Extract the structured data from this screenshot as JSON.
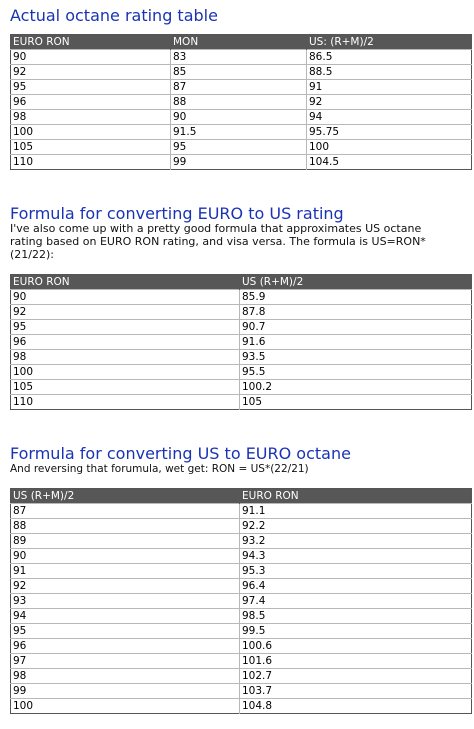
{
  "section1": {
    "title": "Actual octane rating table",
    "headers": [
      "EURO RON",
      "MON",
      "US: (R+M)/2"
    ],
    "rows": [
      [
        "90",
        "83",
        "86.5"
      ],
      [
        "92",
        "85",
        "88.5"
      ],
      [
        "95",
        "87",
        "91"
      ],
      [
        "96",
        "88",
        "92"
      ],
      [
        "98",
        "90",
        "94"
      ],
      [
        "100",
        "91.5",
        "95.75"
      ],
      [
        "105",
        "95",
        "100"
      ],
      [
        "110",
        "99",
        "104.5"
      ]
    ]
  },
  "section2": {
    "title": "Formula for converting EURO to US rating",
    "intro_lines": [
      "I've also come up with a pretty good formula that approximates US octane",
      "rating based on EURO RON rating, and visa versa. The formula is US=RON*",
      "(21/22):"
    ],
    "headers": [
      "EURO RON",
      "US (R+M)/2"
    ],
    "rows": [
      [
        "90",
        "85.9"
      ],
      [
        "92",
        "87.8"
      ],
      [
        "95",
        "90.7"
      ],
      [
        "96",
        "91.6"
      ],
      [
        "98",
        "93.5"
      ],
      [
        "100",
        "95.5"
      ],
      [
        "105",
        "100.2"
      ],
      [
        "110",
        "105"
      ]
    ]
  },
  "section3": {
    "title": "Formula for converting US to EURO octane",
    "intro_lines": [
      "And reversing that forumula, wet get: RON = US*(22/21)"
    ],
    "headers": [
      "US (R+M)/2",
      "EURO RON"
    ],
    "rows": [
      [
        "87",
        "91.1"
      ],
      [
        "88",
        "92.2"
      ],
      [
        "89",
        "93.2"
      ],
      [
        "90",
        "94.3"
      ],
      [
        "91",
        "95.3"
      ],
      [
        "92",
        "96.4"
      ],
      [
        "93",
        "97.4"
      ],
      [
        "94",
        "98.5"
      ],
      [
        "95",
        "99.5"
      ],
      [
        "96",
        "100.6"
      ],
      [
        "97",
        "101.6"
      ],
      [
        "98",
        "102.7"
      ],
      [
        "99",
        "103.7"
      ],
      [
        "100",
        "104.8"
      ]
    ]
  }
}
